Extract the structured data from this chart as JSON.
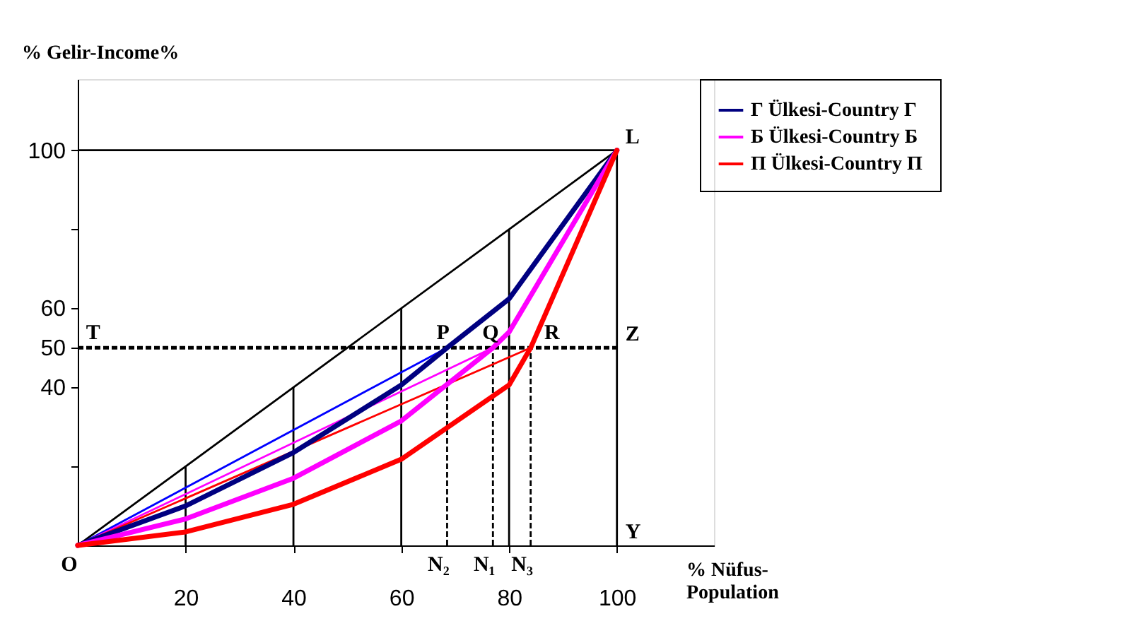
{
  "chart_data": {
    "type": "line",
    "xlabel": "% Nüfus-Population",
    "ylabel": "% Gelir-Income%",
    "xlim": [
      0,
      118
    ],
    "ylim": [
      0,
      118
    ],
    "xticks": [
      20,
      40,
      60,
      80,
      100
    ],
    "yticks": [
      {
        "value": 20,
        "label": null
      },
      40,
      50,
      60,
      {
        "value": 80,
        "label": null
      },
      100
    ],
    "grid": false,
    "legend": "right",
    "series": [
      {
        "x": [
          0,
          100,
          100,
          100,
          0
        ],
        "values": [
          100,
          100,
          0,
          100,
          0
        ],
        "color": "#000000"
      },
      {
        "x": [
          20,
          20
        ],
        "values": [
          0,
          20
        ],
        "color": "#000000"
      },
      {
        "x": [
          40,
          40
        ],
        "values": [
          0,
          40
        ],
        "color": "#000000"
      },
      {
        "x": [
          60,
          60
        ],
        "values": [
          0,
          60
        ],
        "color": "#000000"
      },
      {
        "x": [
          80,
          80
        ],
        "values": [
          0,
          80
        ],
        "color": "#000000"
      },
      {
        "x": [
          68.5,
          68.5
        ],
        "values": [
          0,
          50
        ],
        "color": "#000000",
        "line_style": "dashed"
      },
      {
        "x": [
          77,
          77
        ],
        "values": [
          0,
          50
        ],
        "color": "#000000",
        "line_style": "dashed"
      },
      {
        "x": [
          84,
          84
        ],
        "values": [
          0,
          50
        ],
        "color": "#000000",
        "line_style": "dashed"
      },
      {
        "x": [
          0,
          100
        ],
        "values": [
          50,
          50
        ],
        "color": "#000000",
        "line_style": "dashed"
      },
      {
        "x": [
          0,
          68.5
        ],
        "values": [
          0,
          50
        ],
        "color": "#0000ff"
      },
      {
        "x": [
          0,
          77
        ],
        "values": [
          0,
          50
        ],
        "color": "#ff00ff"
      },
      {
        "x": [
          0,
          84
        ],
        "values": [
          0,
          50
        ],
        "color": "#ff0000"
      },
      {
        "name": "Г Ülkesi-Country Г",
        "color": "#000080",
        "x": [
          0,
          20,
          40,
          60,
          68.5,
          80,
          100
        ],
        "values": [
          0,
          10,
          23.5,
          40.6,
          50,
          62.4,
          100
        ]
      },
      {
        "name": "Б Ülkesi-Country Б",
        "color": "#ff00ff",
        "x": [
          0,
          20,
          40,
          60,
          77,
          80,
          100
        ],
        "values": [
          0,
          6.7,
          17,
          31.5,
          50,
          54,
          100
        ]
      },
      {
        "name": "П Ülkesi-Country П",
        "color": "#ff0000",
        "x": [
          0,
          20,
          40,
          60,
          80,
          84,
          100
        ],
        "values": [
          0,
          3.4,
          10.4,
          21.8,
          40.6,
          50,
          100
        ]
      }
    ],
    "annotations": [
      {
        "text": "O",
        "x": 0,
        "y": 0
      },
      {
        "text": "L",
        "x": 100,
        "y": 100
      },
      {
        "text": "T",
        "x": 1,
        "y": 50
      },
      {
        "text": "P",
        "x": 66,
        "y": 50
      },
      {
        "text": "Q",
        "x": 74.5,
        "y": 50
      },
      {
        "text": "R",
        "x": 86,
        "y": 50
      },
      {
        "text": "Z",
        "x": 100,
        "y": 50
      },
      {
        "text": "Y",
        "x": 100,
        "y": 0
      },
      {
        "text": "N₂",
        "x": 68.5,
        "y": 0
      },
      {
        "text": "N₁",
        "x": 77,
        "y": 0
      },
      {
        "text": "N₃",
        "x": 84,
        "y": 0
      }
    ]
  }
}
